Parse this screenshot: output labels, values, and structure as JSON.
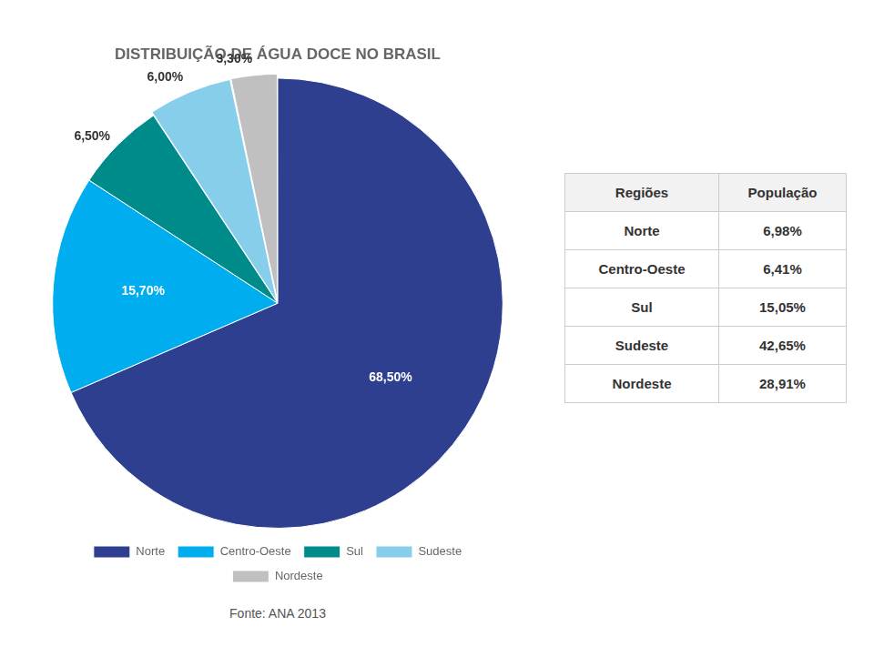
{
  "chart_data": {
    "type": "pie",
    "title": "DISTRIBUIÇÃO DE ÁGUA DOCE NO BRASIL",
    "categories": [
      "Norte",
      "Centro-Oeste",
      "Sul",
      "Sudeste",
      "Nordeste"
    ],
    "values": [
      68.5,
      15.7,
      6.5,
      6.0,
      3.3
    ],
    "value_labels": [
      "68,50%",
      "15,70%",
      "6,50%",
      "6,00%",
      "3,30%"
    ],
    "colors": [
      "#2E3F8F",
      "#00AEEF",
      "#008B8B",
      "#87CEEB",
      "#C0C0C0"
    ],
    "data_labels": true,
    "legend": "bottom",
    "annotations": [
      "Fonte: ANA 2013"
    ],
    "table": {
      "columns": [
        "Regiões",
        "População"
      ],
      "rows": [
        [
          "Norte",
          "6,98%"
        ],
        [
          "Centro-Oeste",
          "6,41%"
        ],
        [
          "Sul",
          "15,05%"
        ],
        [
          "Sudeste",
          "42,65%"
        ],
        [
          "Nordeste",
          "28,91%"
        ]
      ]
    }
  }
}
